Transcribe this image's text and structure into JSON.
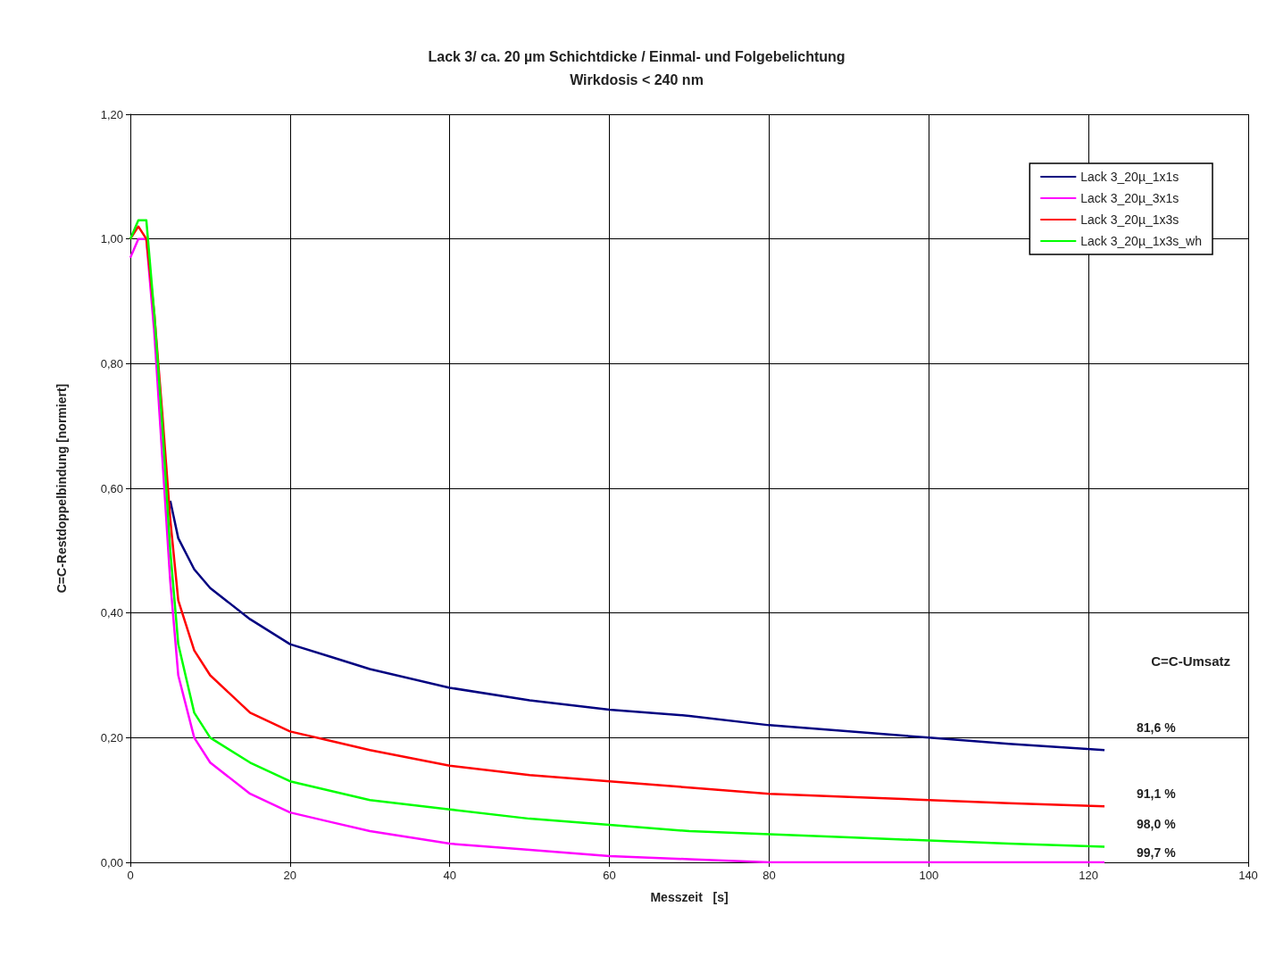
{
  "chart_data": {
    "type": "line",
    "title": "Lack 3/ ca. 20 µm Schichtdicke / Einmal- und Folgebelichtung",
    "subtitle": "Wirkdosis < 240 nm",
    "xlabel": "Messzeit   [s]",
    "ylabel": "C=C-Restdoppelbindung [normiert]",
    "x": [
      0,
      1,
      2,
      3,
      4,
      5,
      6,
      8,
      10,
      15,
      20,
      25,
      30,
      40,
      50,
      60,
      70,
      80,
      90,
      100,
      110,
      122
    ],
    "series": [
      {
        "name": "Lack 3_20µ_1x1s",
        "color": "#000080",
        "values": [
          null,
          null,
          null,
          null,
          null,
          0.58,
          0.52,
          0.47,
          0.44,
          0.39,
          0.35,
          0.33,
          0.31,
          0.28,
          0.26,
          0.245,
          0.235,
          0.22,
          0.21,
          0.2,
          0.19,
          0.18
        ]
      },
      {
        "name": "Lack 3_20µ_3x1s",
        "color": "#ff00ff",
        "values": [
          0.97,
          1.0,
          1.0,
          0.85,
          0.65,
          0.45,
          0.3,
          0.2,
          0.16,
          0.11,
          0.08,
          0.065,
          0.05,
          0.03,
          0.02,
          0.01,
          0.005,
          0,
          0,
          0,
          0,
          0
        ]
      },
      {
        "name": "Lack 3_20µ_1x3s",
        "color": "#ff0000",
        "values": [
          1.0,
          1.02,
          1.0,
          0.88,
          0.72,
          0.55,
          0.42,
          0.34,
          0.3,
          0.24,
          0.21,
          0.195,
          0.18,
          0.155,
          0.14,
          0.13,
          0.12,
          0.11,
          0.105,
          0.1,
          0.095,
          0.09
        ]
      },
      {
        "name": "Lack 3_20µ_1x3s_wh",
        "color": "#00ff00",
        "values": [
          1.0,
          1.03,
          1.03,
          0.88,
          0.7,
          0.5,
          0.35,
          0.24,
          0.2,
          0.16,
          0.13,
          0.115,
          0.1,
          0.085,
          0.07,
          0.06,
          0.05,
          0.045,
          0.04,
          0.035,
          0.03,
          0.025
        ]
      }
    ],
    "xlim": [
      0,
      140
    ],
    "xticks": [
      0,
      20,
      40,
      60,
      80,
      100,
      120,
      140
    ],
    "ylim": [
      0,
      1.2
    ],
    "yticks": [
      {
        "value": 0,
        "label": "0,00"
      },
      {
        "value": 0.2,
        "label": "0,20"
      },
      {
        "value": 0.4,
        "label": "0,40"
      },
      {
        "value": 0.6,
        "label": "0,60"
      },
      {
        "value": 0.8,
        "label": "0,80"
      },
      {
        "value": 1.0,
        "label": "1,00"
      },
      {
        "value": 1.2,
        "label": "1,20"
      }
    ],
    "grid": true,
    "legend": "top right",
    "annotations": [
      "C=C-Umsatz",
      "81,6 %",
      "91,1 %",
      "98,0 %",
      "99,7 %"
    ]
  }
}
